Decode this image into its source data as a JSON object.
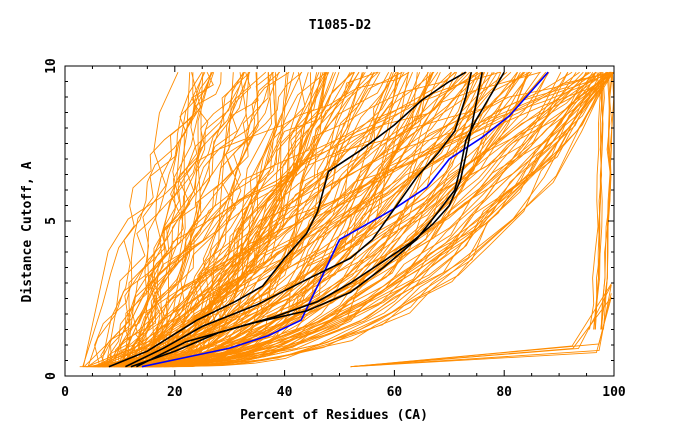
{
  "chart_data": {
    "type": "line",
    "title": "T1085-D2",
    "xlabel": "Percent of Residues (CA)",
    "ylabel": "Distance Cutoff, A",
    "xlim": [
      0,
      100
    ],
    "ylim": [
      0,
      10
    ],
    "x_ticks": [
      "0",
      "20",
      "40",
      "60",
      "80",
      "100"
    ],
    "y_ticks": [
      "0",
      "5",
      "10"
    ],
    "x_tick_values": [
      0,
      20,
      40,
      60,
      80,
      100
    ],
    "y_tick_values": [
      0,
      5,
      10
    ],
    "grid": false,
    "colors": {
      "background_series": "#ff8c00",
      "highlight": "#000000",
      "reference": "#0000ff"
    },
    "series": [
      {
        "role": "reference",
        "color": "#0000ff",
        "x": [
          14,
          22,
          30,
          37,
          43,
          46,
          50,
          54,
          60,
          66,
          70,
          76,
          81,
          88
        ],
        "y": [
          0.3,
          0.6,
          0.9,
          1.3,
          1.8,
          2.9,
          4.4,
          4.8,
          5.4,
          6.1,
          7.0,
          7.7,
          8.4,
          9.8
        ]
      },
      {
        "role": "highlight",
        "color": "#000000",
        "x": [
          8,
          15,
          24,
          31,
          36,
          40,
          44,
          46,
          48,
          54,
          60,
          65,
          70,
          73
        ],
        "y": [
          0.3,
          0.8,
          1.8,
          2.4,
          2.9,
          3.8,
          4.6,
          5.3,
          6.6,
          7.3,
          8.1,
          8.9,
          9.5,
          9.8
        ]
      },
      {
        "role": "highlight",
        "color": "#000000",
        "x": [
          11,
          18,
          25,
          35,
          45,
          52,
          56,
          60,
          64,
          68,
          71,
          73,
          74
        ],
        "y": [
          0.3,
          0.9,
          1.6,
          2.3,
          3.2,
          3.8,
          4.4,
          5.4,
          6.4,
          7.2,
          7.9,
          9.0,
          9.8
        ]
      },
      {
        "role": "highlight",
        "color": "#000000",
        "x": [
          13,
          22,
          34,
          44,
          52,
          58,
          64,
          68,
          71,
          72,
          73,
          75,
          77,
          80
        ],
        "y": [
          0.3,
          1.1,
          1.7,
          2.1,
          2.7,
          3.5,
          4.4,
          5.3,
          6.0,
          6.7,
          7.6,
          8.3,
          8.9,
          9.8
        ]
      },
      {
        "role": "highlight",
        "color": "#000000",
        "x": [
          12,
          20,
          28,
          38,
          46,
          52,
          58,
          63,
          67,
          70,
          72,
          73,
          74,
          76
        ],
        "y": [
          0.3,
          0.8,
          1.4,
          1.9,
          2.4,
          3.0,
          3.7,
          4.3,
          4.9,
          5.5,
          6.3,
          7.1,
          8.0,
          9.8
        ]
      }
    ]
  }
}
